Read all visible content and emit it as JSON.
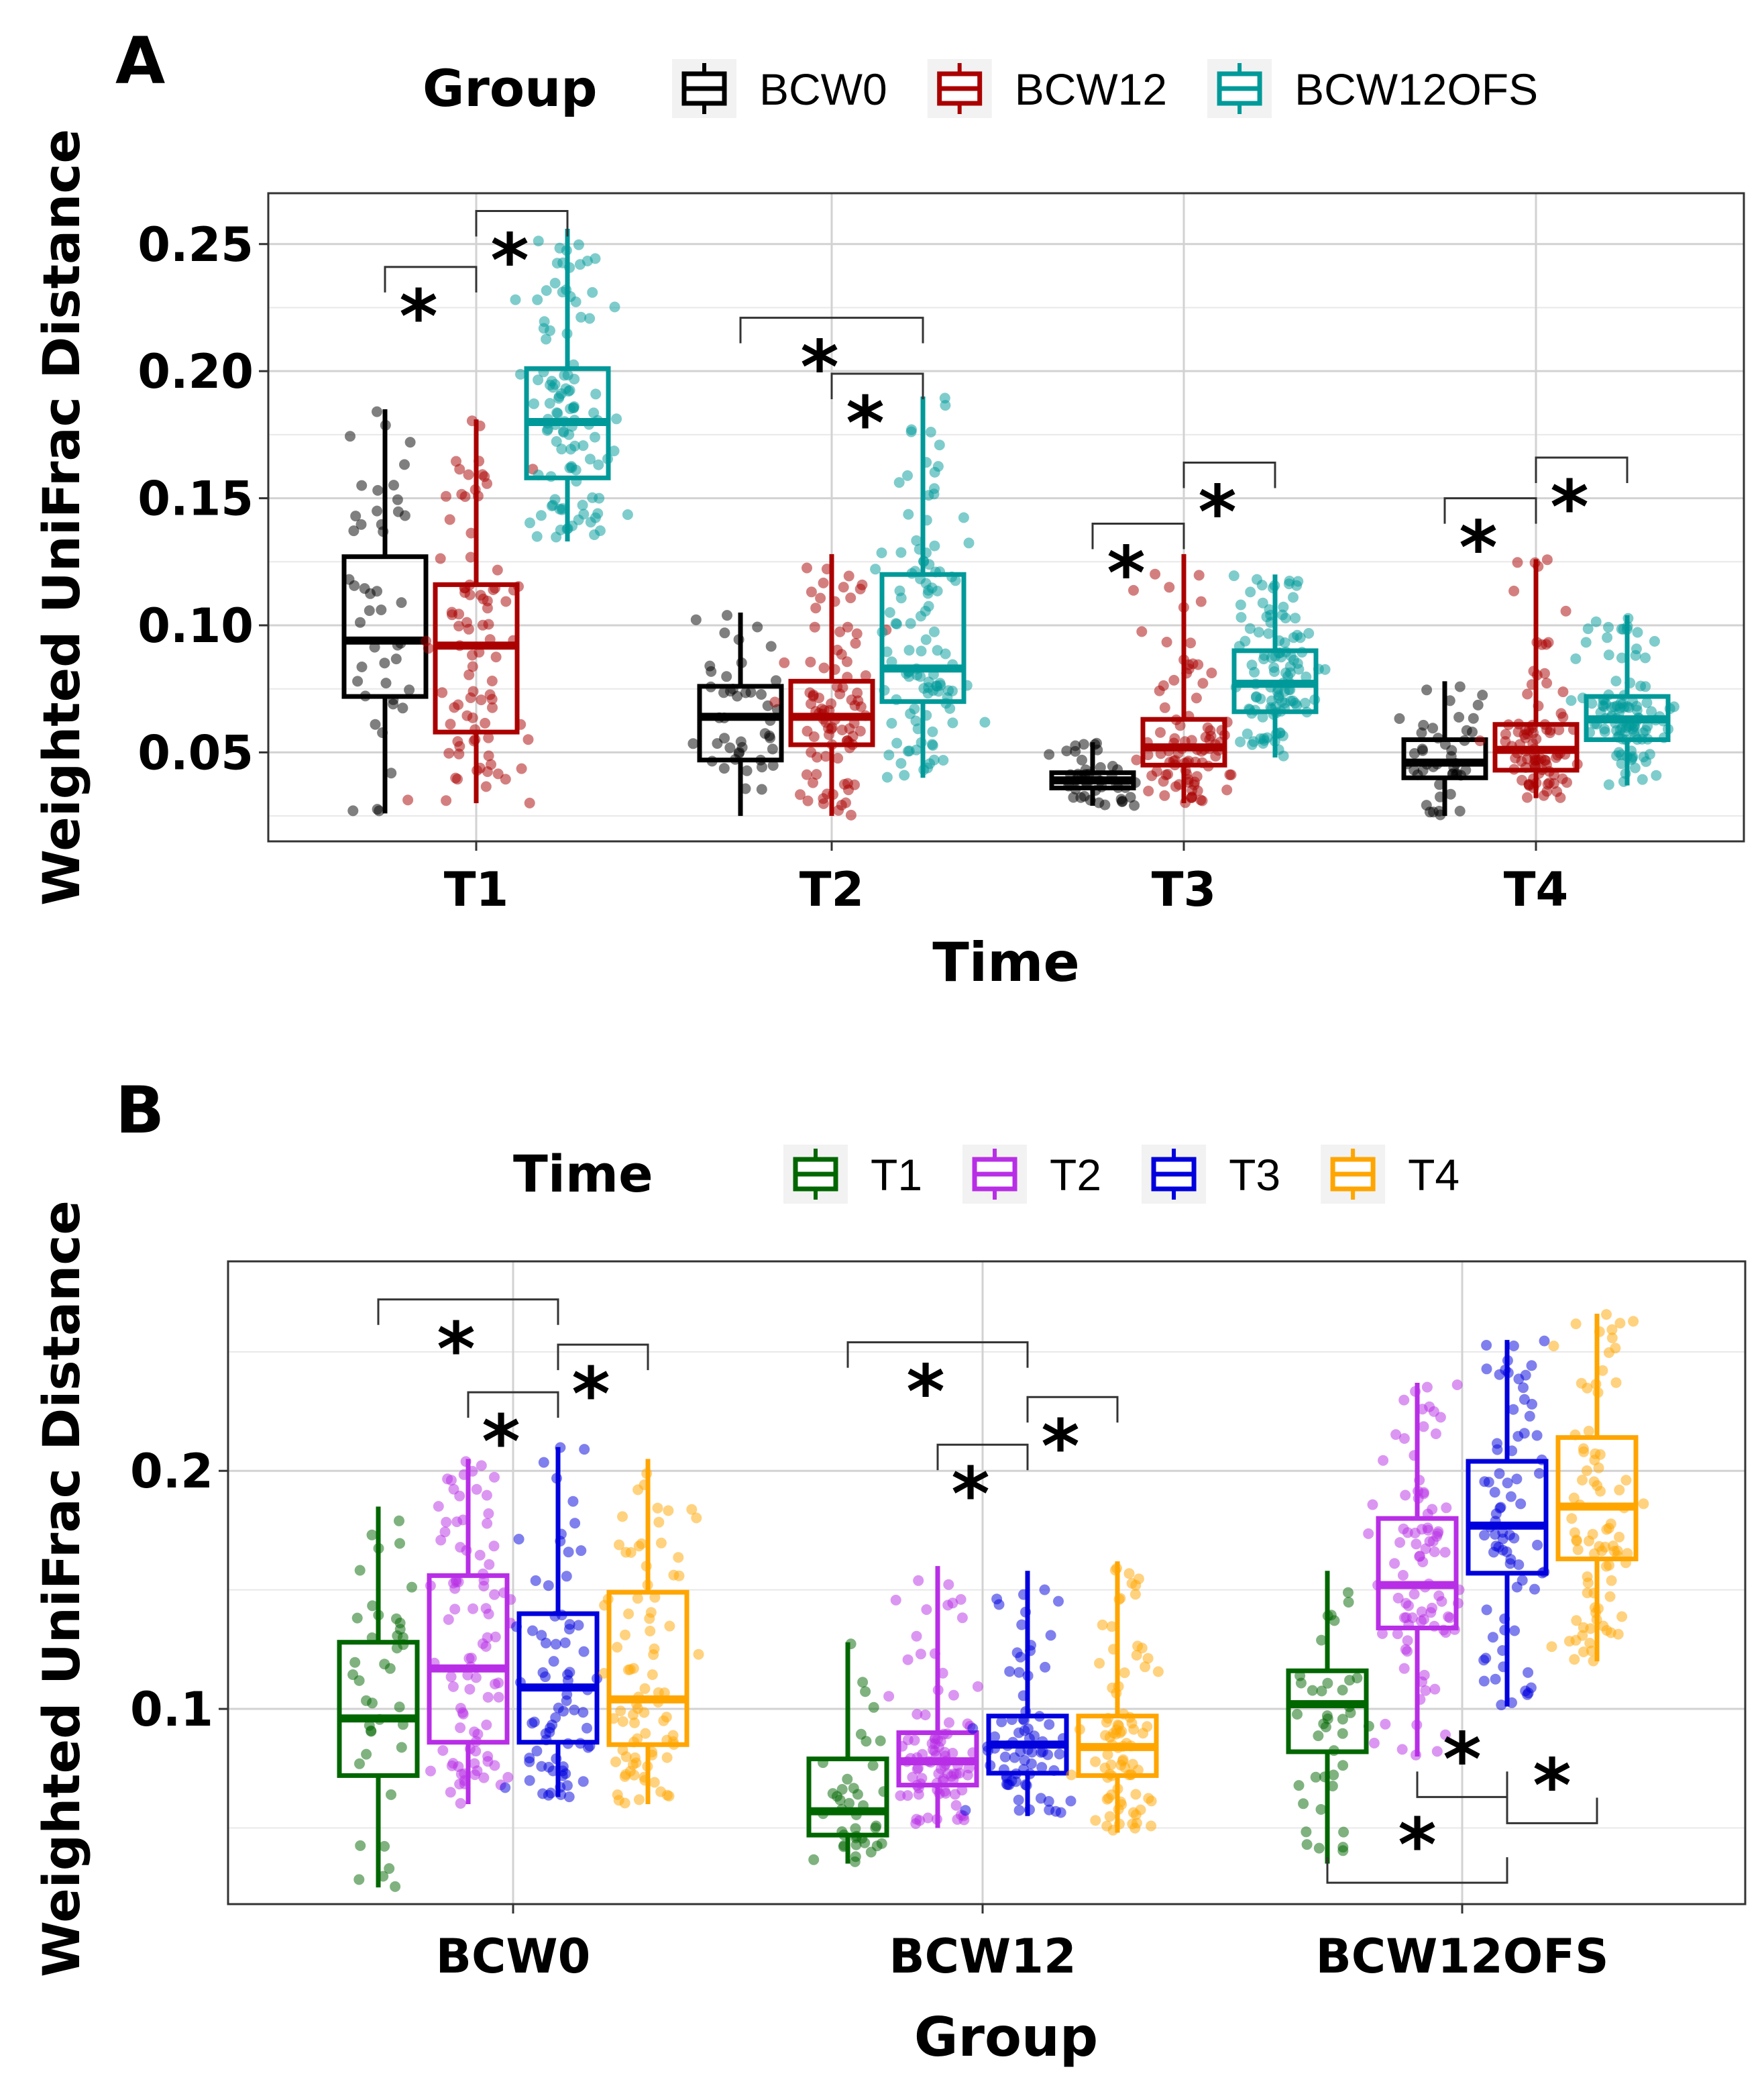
{
  "chart_data": [
    {
      "panel": "A",
      "type": "box",
      "title": "",
      "xlabel": "Time",
      "ylabel": "Weighted UniFrac Distance",
      "ylim": [
        0.015,
        0.27
      ],
      "yticks": [
        0.05,
        0.1,
        0.15,
        0.2,
        0.25
      ],
      "ytick_labels": [
        "0.05",
        "0.10",
        "0.15",
        "0.20",
        "0.25"
      ],
      "grid": true,
      "legend": {
        "title": "Group",
        "position": "top"
      },
      "categories": [
        "T1",
        "T2",
        "T3",
        "T4"
      ],
      "series": [
        {
          "name": "BCW0",
          "color": "#000000",
          "n": 45,
          "boxes": [
            {
              "min": 0.026,
              "q1": 0.072,
              "median": 0.094,
              "q3": 0.127,
              "max": 0.185
            },
            {
              "min": 0.025,
              "q1": 0.047,
              "median": 0.064,
              "q3": 0.076,
              "max": 0.105
            },
            {
              "min": 0.029,
              "q1": 0.036,
              "median": 0.039,
              "q3": 0.042,
              "max": 0.054
            },
            {
              "min": 0.025,
              "q1": 0.04,
              "median": 0.046,
              "q3": 0.055,
              "max": 0.078
            }
          ]
        },
        {
          "name": "BCW12",
          "color": "#aa0000",
          "n": 90,
          "boxes": [
            {
              "min": 0.03,
              "q1": 0.058,
              "median": 0.092,
              "q3": 0.116,
              "max": 0.181
            },
            {
              "min": 0.025,
              "q1": 0.053,
              "median": 0.064,
              "q3": 0.078,
              "max": 0.128
            },
            {
              "min": 0.03,
              "q1": 0.045,
              "median": 0.052,
              "q3": 0.063,
              "max": 0.128
            },
            {
              "min": 0.032,
              "q1": 0.043,
              "median": 0.051,
              "q3": 0.061,
              "max": 0.126
            }
          ]
        },
        {
          "name": "BCW12OFS",
          "color": "#009999",
          "n": 110,
          "boxes": [
            {
              "min": 0.133,
              "q1": 0.158,
              "median": 0.18,
              "q3": 0.201,
              "max": 0.256
            },
            {
              "min": 0.04,
              "q1": 0.07,
              "median": 0.083,
              "q3": 0.12,
              "max": 0.19
            },
            {
              "min": 0.048,
              "q1": 0.066,
              "median": 0.077,
              "q3": 0.09,
              "max": 0.12
            },
            {
              "min": 0.037,
              "q1": 0.055,
              "median": 0.063,
              "q3": 0.072,
              "max": 0.104
            }
          ]
        }
      ],
      "brackets": [
        {
          "category": "T1",
          "from": "BCW0",
          "to": "BCW12",
          "level": 0.241,
          "label": "*"
        },
        {
          "category": "T1",
          "from": "BCW12",
          "to": "BCW12OFS",
          "level": 0.263,
          "label": "*"
        },
        {
          "category": "T2",
          "from": "BCW0",
          "to": "BCW12OFS",
          "level": 0.221,
          "label": "*"
        },
        {
          "category": "T2",
          "from": "BCW12",
          "to": "BCW12OFS",
          "level": 0.199,
          "label": "*"
        },
        {
          "category": "T3",
          "from": "BCW0",
          "to": "BCW12",
          "level": 0.14,
          "label": "*"
        },
        {
          "category": "T3",
          "from": "BCW12",
          "to": "BCW12OFS",
          "level": 0.164,
          "label": "*"
        },
        {
          "category": "T4",
          "from": "BCW0",
          "to": "BCW12",
          "level": 0.15,
          "label": "*"
        },
        {
          "category": "T4",
          "from": "BCW12",
          "to": "BCW12OFS",
          "level": 0.166,
          "label": "*"
        }
      ]
    },
    {
      "panel": "B",
      "type": "box",
      "title": "",
      "xlabel": "Group",
      "ylabel": "Weighted UniFrac Distance",
      "ylim": [
        0.018,
        0.288
      ],
      "yticks": [
        0.1,
        0.2
      ],
      "ytick_labels": [
        "0.1",
        "0.2"
      ],
      "grid": true,
      "legend": {
        "title": "Time",
        "position": "top"
      },
      "categories": [
        "BCW0",
        "BCW12",
        "BCW12OFS"
      ],
      "series": [
        {
          "name": "T1",
          "color": "#006600",
          "n": 40,
          "boxes": [
            {
              "min": 0.025,
              "q1": 0.072,
              "median": 0.096,
              "q3": 0.128,
              "max": 0.185
            },
            {
              "min": 0.035,
              "q1": 0.047,
              "median": 0.057,
              "q3": 0.079,
              "max": 0.128
            },
            {
              "min": 0.035,
              "q1": 0.082,
              "median": 0.102,
              "q3": 0.116,
              "max": 0.158
            }
          ]
        },
        {
          "name": "T2",
          "color": "#b82ee6",
          "n": 90,
          "boxes": [
            {
              "min": 0.06,
              "q1": 0.086,
              "median": 0.117,
              "q3": 0.156,
              "max": 0.205
            },
            {
              "min": 0.05,
              "q1": 0.068,
              "median": 0.078,
              "q3": 0.09,
              "max": 0.16
            },
            {
              "min": 0.08,
              "q1": 0.134,
              "median": 0.152,
              "q3": 0.18,
              "max": 0.237
            }
          ]
        },
        {
          "name": "T3",
          "color": "#0000dd",
          "n": 75,
          "boxes": [
            {
              "min": 0.063,
              "q1": 0.086,
              "median": 0.109,
              "q3": 0.14,
              "max": 0.21
            },
            {
              "min": 0.055,
              "q1": 0.073,
              "median": 0.085,
              "q3": 0.097,
              "max": 0.158
            },
            {
              "min": 0.101,
              "q1": 0.157,
              "median": 0.177,
              "q3": 0.204,
              "max": 0.255
            }
          ]
        },
        {
          "name": "T4",
          "color": "#ffa500",
          "n": 85,
          "boxes": [
            {
              "min": 0.06,
              "q1": 0.085,
              "median": 0.104,
              "q3": 0.149,
              "max": 0.205
            },
            {
              "min": 0.048,
              "q1": 0.072,
              "median": 0.084,
              "q3": 0.097,
              "max": 0.162
            },
            {
              "min": 0.12,
              "q1": 0.163,
              "median": 0.185,
              "q3": 0.214,
              "max": 0.266
            }
          ]
        }
      ],
      "brackets": [
        {
          "category": "BCW0",
          "from": "T1",
          "to": "T3",
          "level": 0.272,
          "label": "*",
          "side": "top"
        },
        {
          "category": "BCW0",
          "from": "T3",
          "to": "T4",
          "level": 0.253,
          "label": "*",
          "side": "top"
        },
        {
          "category": "BCW0",
          "from": "T2",
          "to": "T3",
          "level": 0.233,
          "label": "*",
          "side": "top"
        },
        {
          "category": "BCW12",
          "from": "T1",
          "to": "T3",
          "level": 0.254,
          "label": "*",
          "side": "top"
        },
        {
          "category": "BCW12",
          "from": "T3",
          "to": "T4",
          "level": 0.231,
          "label": "*",
          "side": "top"
        },
        {
          "category": "BCW12",
          "from": "T2",
          "to": "T3",
          "level": 0.211,
          "label": "*",
          "side": "top"
        },
        {
          "category": "BCW12OFS",
          "from": "T2",
          "to": "T3",
          "level": 0.063,
          "label": "*",
          "side": "bottom"
        },
        {
          "category": "BCW12OFS",
          "from": "T3",
          "to": "T4",
          "level": 0.052,
          "label": "*",
          "side": "bottom"
        },
        {
          "category": "BCW12OFS",
          "from": "T1",
          "to": "T3",
          "level": 0.027,
          "label": "*",
          "side": "bottom"
        }
      ]
    }
  ]
}
